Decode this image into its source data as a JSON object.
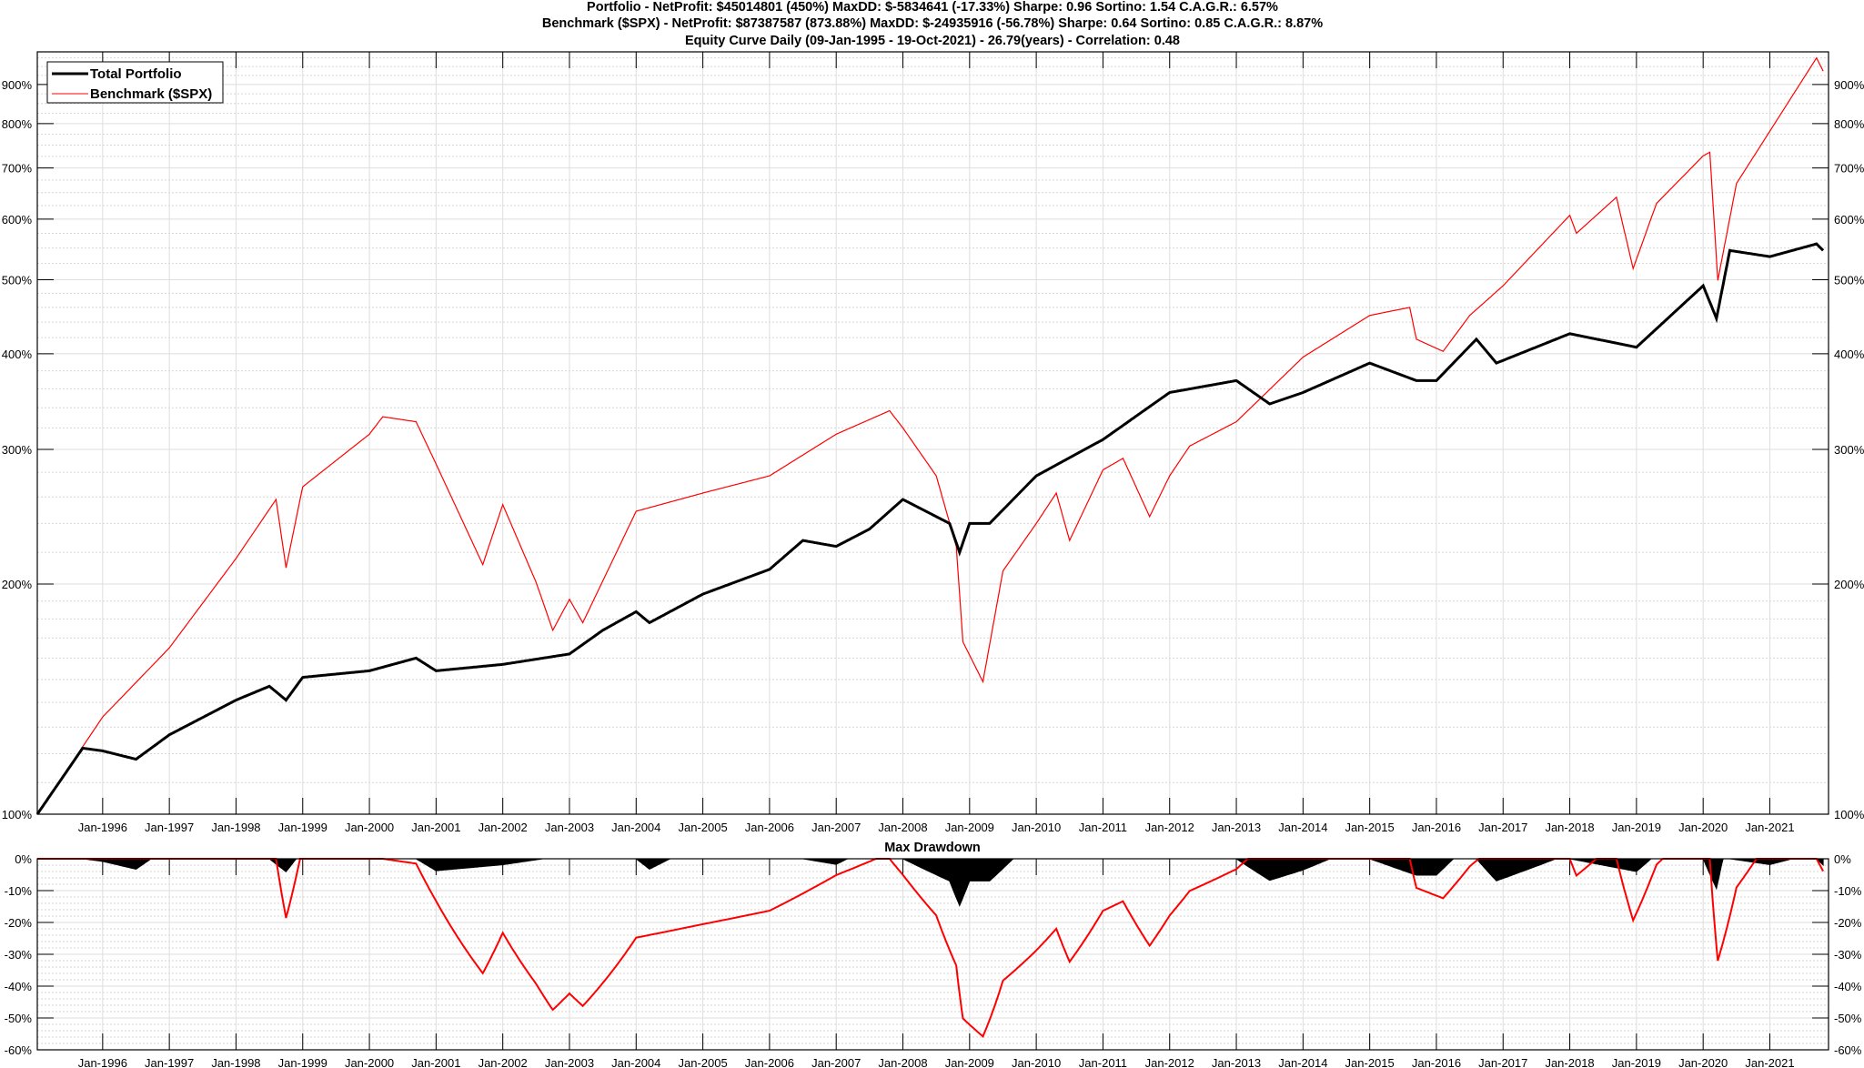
{
  "chart_data": [
    {
      "type": "line",
      "title_lines": [
        "Portfolio - NetProfit: $45014801 (450%) MaxDD: $-5834641 (-17.33%) Sharpe: 0.96 Sortino: 1.54 C.A.G.R.: 6.57%",
        "Benchmark ($SPX) - NetProfit: $87387587 (873.88%) MaxDD: $-24935916 (-56.78%) Sharpe: 0.64 Sortino: 0.85 C.A.G.R.: 8.87%",
        "Equity Curve Daily (09-Jan-1995 - 19-Oct-2021) - 26.79(years) - Correlation: 0.48"
      ],
      "yscale": "log",
      "ylim": [
        100,
        993
      ],
      "xlim": [
        1995.02,
        2021.88
      ],
      "yticks": [
        100,
        200,
        300,
        400,
        500,
        600,
        700,
        800,
        900
      ],
      "ytick_labels": [
        "100%",
        "200%",
        "300%",
        "400%",
        "500%",
        "600%",
        "700%",
        "800%",
        "900%"
      ],
      "xticks": [
        1996,
        1997,
        1998,
        1999,
        2000,
        2001,
        2002,
        2003,
        2004,
        2005,
        2006,
        2007,
        2008,
        2009,
        2010,
        2011,
        2012,
        2013,
        2014,
        2015,
        2016,
        2017,
        2018,
        2019,
        2020,
        2021
      ],
      "xtick_labels": [
        "Jan-1996",
        "Jan-1997",
        "Jan-1998",
        "Jan-1999",
        "Jan-2000",
        "Jan-2001",
        "Jan-2002",
        "Jan-2003",
        "Jan-2004",
        "Jan-2005",
        "Jan-2006",
        "Jan-2007",
        "Jan-2008",
        "Jan-2009",
        "Jan-2010",
        "Jan-2011",
        "Jan-2012",
        "Jan-2013",
        "Jan-2014",
        "Jan-2015",
        "Jan-2016",
        "Jan-2017",
        "Jan-2018",
        "Jan-2019",
        "Jan-2020",
        "Jan-2021"
      ],
      "grid": true,
      "legend_position": "top-left",
      "series": [
        {
          "name": "Total Portfolio",
          "color": "#000000",
          "x": [
            1995.02,
            1995.7,
            1996.0,
            1996.5,
            1997.0,
            1998.0,
            1998.5,
            1998.75,
            1999.0,
            2000.0,
            2000.7,
            2001.0,
            2002.0,
            2003.0,
            2003.5,
            2004.0,
            2004.2,
            2005.0,
            2006.0,
            2006.5,
            2007.0,
            2007.5,
            2008.0,
            2008.7,
            2008.85,
            2009.0,
            2009.3,
            2010.0,
            2011.0,
            2012.0,
            2013.0,
            2013.5,
            2014.0,
            2015.0,
            2015.7,
            2016.0,
            2016.6,
            2016.9,
            2018.0,
            2019.0,
            2020.0,
            2020.2,
            2020.4,
            2021.0,
            2021.7,
            2021.8
          ],
          "y": [
            100,
            122,
            121,
            118,
            127,
            141,
            147,
            141,
            151,
            154,
            160,
            154,
            157,
            162,
            174,
            184,
            178,
            194,
            209,
            228,
            224,
            236,
            258,
            240,
            220,
            240,
            240,
            277,
            309,
            356,
            369,
            344,
            356,
            389,
            369,
            369,
            418,
            389,
            425,
            408,
            491,
            445,
            546,
            536,
            557,
            546
          ]
        },
        {
          "name": "Benchmark ($SPX)",
          "color": "#ff0000",
          "x": [
            1995.02,
            1996.0,
            1997.0,
            1998.0,
            1998.6,
            1998.75,
            1999.0,
            2000.0,
            2000.2,
            2000.7,
            2001.0,
            2001.7,
            2002.0,
            2002.5,
            2002.75,
            2003.0,
            2003.2,
            2004.0,
            2005.0,
            2006.0,
            2007.0,
            2007.8,
            2008.0,
            2008.5,
            2008.8,
            2008.9,
            2009.2,
            2009.5,
            2010.0,
            2010.3,
            2010.5,
            2011.0,
            2011.3,
            2011.7,
            2012.0,
            2012.3,
            2013.0,
            2014.0,
            2015.0,
            2015.6,
            2015.7,
            2016.1,
            2016.5,
            2017.0,
            2018.0,
            2018.1,
            2018.7,
            2018.95,
            2019.3,
            2020.0,
            2020.1,
            2020.22,
            2020.5,
            2021.0,
            2021.7,
            2021.8
          ],
          "y": [
            100,
            134,
            165,
            216,
            258,
            210,
            268,
            314,
            331,
            326,
            287,
            212,
            254,
            201,
            174,
            191,
            178,
            249,
            263,
            277,
            314,
            337,
            320,
            277,
            224,
            168,
            149,
            208,
            240,
            263,
            228,
            282,
            292,
            245,
            277,
            303,
            326,
            396,
            449,
            460,
            418,
            403,
            449,
            491,
            607,
            575,
            641,
            517,
            629,
            726,
            734,
            499,
            668,
            782,
            975,
            937
          ]
        }
      ]
    },
    {
      "type": "area",
      "title": "Max Drawdown",
      "derived_from": "running drawdown of the equity series above",
      "ylim": [
        -60,
        0
      ],
      "yticks": [
        0,
        -10,
        -20,
        -30,
        -40,
        -50,
        -60
      ],
      "ytick_labels": [
        "0%",
        "-10%",
        "-20%",
        "-30%",
        "-40%",
        "-50%",
        "-60%"
      ],
      "max_drawdown": {
        "Total Portfolio": -17.33,
        "Benchmark ($SPX)": -56.78
      }
    }
  ]
}
